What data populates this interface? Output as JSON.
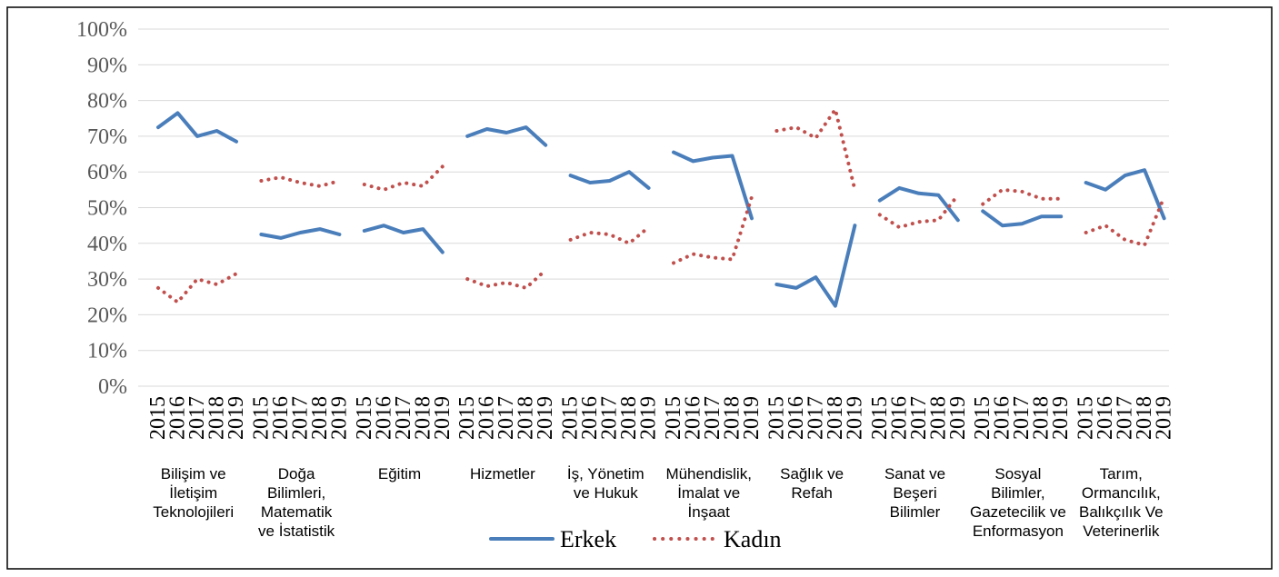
{
  "chart_data": {
    "type": "line",
    "ylim": [
      0,
      100
    ],
    "y_ticks": [
      "0%",
      "10%",
      "20%",
      "30%",
      "40%",
      "50%",
      "60%",
      "70%",
      "80%",
      "90%",
      "100%"
    ],
    "x_labels": [
      "2015",
      "2016",
      "2017",
      "2018",
      "2019"
    ],
    "grid": true,
    "legend_position": "bottom",
    "groups": [
      {
        "label_lines": [
          "Bilişim ve",
          "İletişim",
          "Teknolojileri"
        ],
        "series": [
          {
            "name": "Erkek",
            "values": [
              72.5,
              76.5,
              70.0,
              71.5,
              68.5
            ]
          },
          {
            "name": "Kadın",
            "values": [
              27.5,
              23.5,
              30.0,
              28.5,
              31.5
            ]
          }
        ]
      },
      {
        "label_lines": [
          "Doğa",
          "Bilimleri,",
          "Matematik",
          "ve İstatistik"
        ],
        "series": [
          {
            "name": "Erkek",
            "values": [
              42.5,
              41.5,
              43.0,
              44.0,
              42.5
            ]
          },
          {
            "name": "Kadın",
            "values": [
              57.5,
              58.5,
              57.0,
              56.0,
              57.5
            ]
          }
        ]
      },
      {
        "label_lines": [
          "Eğitim"
        ],
        "series": [
          {
            "name": "Erkek",
            "values": [
              43.5,
              45.0,
              43.0,
              44.0,
              37.5
            ]
          },
          {
            "name": "Kadın",
            "values": [
              56.5,
              55.0,
              57.0,
              56.0,
              61.5
            ]
          }
        ]
      },
      {
        "label_lines": [
          "Hizmetler"
        ],
        "series": [
          {
            "name": "Erkek",
            "values": [
              70.0,
              72.0,
              71.0,
              72.5,
              67.5
            ]
          },
          {
            "name": "Kadın",
            "values": [
              30.0,
              28.0,
              29.0,
              27.5,
              32.5
            ]
          }
        ]
      },
      {
        "label_lines": [
          "İş, Yönetim",
          "ve Hukuk"
        ],
        "series": [
          {
            "name": "Erkek",
            "values": [
              59.0,
              57.0,
              57.5,
              60.0,
              55.5
            ]
          },
          {
            "name": "Kadın",
            "values": [
              41.0,
              43.0,
              42.5,
              40.0,
              44.5
            ]
          }
        ]
      },
      {
        "label_lines": [
          "Mühendislik,",
          "İmalat ve",
          "İnşaat"
        ],
        "series": [
          {
            "name": "Erkek",
            "values": [
              65.5,
              63.0,
              64.0,
              64.5,
              47.0
            ]
          },
          {
            "name": "Kadın",
            "values": [
              34.5,
              37.0,
              36.0,
              35.5,
              53.0
            ]
          }
        ]
      },
      {
        "label_lines": [
          "Sağlık ve",
          "Refah"
        ],
        "series": [
          {
            "name": "Erkek",
            "values": [
              28.5,
              27.5,
              30.5,
              22.5,
              45.0
            ]
          },
          {
            "name": "Kadın",
            "values": [
              71.5,
              72.5,
              69.5,
              77.5,
              55.0
            ]
          }
        ]
      },
      {
        "label_lines": [
          "Sanat ve",
          "Beşeri",
          "Bilimler"
        ],
        "series": [
          {
            "name": "Erkek",
            "values": [
              52.0,
              55.5,
              54.0,
              53.5,
              46.5
            ]
          },
          {
            "name": "Kadın",
            "values": [
              48.0,
              44.5,
              46.0,
              46.5,
              53.5
            ]
          }
        ]
      },
      {
        "label_lines": [
          "Sosyal",
          "Bilimler,",
          "Gazetecilik ve",
          "Enformasyon"
        ],
        "series": [
          {
            "name": "Erkek",
            "values": [
              49.0,
              45.0,
              45.5,
              47.5,
              47.5
            ]
          },
          {
            "name": "Kadın",
            "values": [
              51.0,
              55.0,
              54.5,
              52.5,
              52.5
            ]
          }
        ]
      },
      {
        "label_lines": [
          "Tarım,",
          "Ormancılık,",
          "Balıkçılık Ve",
          "Veterinerlik"
        ],
        "series": [
          {
            "name": "Erkek",
            "values": [
              57.0,
              55.0,
              59.0,
              60.5,
              47.0
            ]
          },
          {
            "name": "Kadın",
            "values": [
              43.0,
              45.0,
              41.0,
              39.5,
              53.0
            ]
          }
        ]
      }
    ],
    "legend": [
      {
        "name": "Erkek",
        "color": "#4a7ebb",
        "style": "solid"
      },
      {
        "name": "Kadın",
        "color": "#c0504d",
        "style": "dotted"
      }
    ]
  }
}
